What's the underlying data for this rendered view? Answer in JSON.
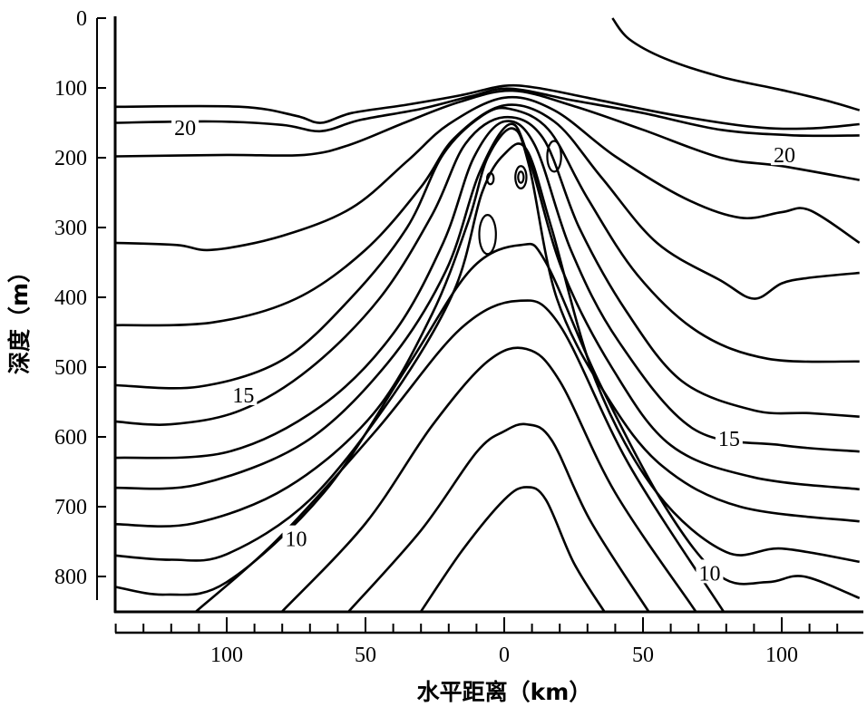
{
  "chart_data": {
    "type": "contour",
    "title": "",
    "xlabel": "水平距离（km）",
    "ylabel": "深度（m）",
    "xlim": [
      -140,
      128
    ],
    "ylim": [
      850,
      0
    ],
    "x_ticks": [
      {
        "value": -100,
        "label": "100"
      },
      {
        "value": -50,
        "label": "50"
      },
      {
        "value": 0,
        "label": "0"
      },
      {
        "value": 50,
        "label": "50"
      },
      {
        "value": 100,
        "label": "100"
      }
    ],
    "x_minor_step": 10,
    "y_ticks": [
      {
        "value": 0,
        "label": "0"
      },
      {
        "value": 100,
        "label": "100"
      },
      {
        "value": 200,
        "label": "200"
      },
      {
        "value": 300,
        "label": "300"
      },
      {
        "value": 400,
        "label": "400"
      },
      {
        "value": 500,
        "label": "500"
      },
      {
        "value": 600,
        "label": "600"
      },
      {
        "value": 700,
        "label": "700"
      },
      {
        "value": 800,
        "label": "800"
      }
    ],
    "contour_labels": [
      {
        "text": "20",
        "x": -115,
        "m": 156
      },
      {
        "text": "20",
        "x": 101,
        "m": 195
      },
      {
        "text": "15",
        "x": -94,
        "m": 539
      },
      {
        "text": "15",
        "x": 81,
        "m": 601
      },
      {
        "text": "10",
        "x": -75,
        "m": 745
      },
      {
        "text": "10",
        "x": 74,
        "m": 794
      }
    ],
    "contours": [
      [
        [
          39,
          0
        ],
        [
          45,
          30
        ],
        [
          58,
          58
        ],
        [
          78,
          84
        ],
        [
          100,
          103
        ],
        [
          116,
          118
        ],
        [
          128,
          132
        ]
      ],
      [
        [
          -140,
          127
        ],
        [
          -95,
          127
        ],
        [
          -75,
          140
        ],
        [
          -66,
          150
        ],
        [
          -55,
          136
        ],
        [
          -35,
          124
        ],
        [
          -15,
          110
        ],
        [
          0,
          97
        ],
        [
          12,
          100
        ],
        [
          30,
          114
        ],
        [
          60,
          138
        ],
        [
          90,
          156
        ],
        [
          110,
          158
        ],
        [
          128,
          152
        ]
      ],
      [
        [
          -140,
          150
        ],
        [
          -105,
          148
        ],
        [
          -80,
          153
        ],
        [
          -66,
          162
        ],
        [
          -52,
          146
        ],
        [
          -30,
          130
        ],
        [
          -12,
          112
        ],
        [
          2,
          101
        ],
        [
          25,
          118
        ],
        [
          50,
          136
        ],
        [
          78,
          160
        ],
        [
          105,
          168
        ],
        [
          128,
          168
        ]
      ],
      [
        [
          -140,
          198
        ],
        [
          -100,
          196
        ],
        [
          -72,
          196
        ],
        [
          -56,
          182
        ],
        [
          -36,
          150
        ],
        [
          -16,
          120
        ],
        [
          3,
          104
        ],
        [
          25,
          126
        ],
        [
          50,
          160
        ],
        [
          78,
          200
        ],
        [
          100,
          212
        ],
        [
          128,
          232
        ]
      ],
      [
        [
          -140,
          322
        ],
        [
          -118,
          325
        ],
        [
          -105,
          332
        ],
        [
          -80,
          312
        ],
        [
          -55,
          272
        ],
        [
          -35,
          205
        ],
        [
          -20,
          152
        ],
        [
          0,
          114
        ],
        [
          18,
          132
        ],
        [
          40,
          198
        ],
        [
          65,
          258
        ],
        [
          85,
          286
        ],
        [
          100,
          278
        ],
        [
          110,
          275
        ],
        [
          128,
          322
        ]
      ],
      [
        [
          -140,
          440
        ],
        [
          -105,
          436
        ],
        [
          -75,
          402
        ],
        [
          -50,
          332
        ],
        [
          -30,
          242
        ],
        [
          -18,
          172
        ],
        [
          0,
          125
        ],
        [
          18,
          148
        ],
        [
          35,
          228
        ],
        [
          55,
          322
        ],
        [
          78,
          376
        ],
        [
          90,
          402
        ],
        [
          100,
          380
        ],
        [
          110,
          372
        ],
        [
          128,
          365
        ]
      ],
      [
        [
          -140,
          526
        ],
        [
          -110,
          528
        ],
        [
          -80,
          490
        ],
        [
          -55,
          400
        ],
        [
          -35,
          300
        ],
        [
          -22,
          195
        ],
        [
          -8,
          140
        ],
        [
          2,
          130
        ],
        [
          16,
          160
        ],
        [
          30,
          258
        ],
        [
          48,
          368
        ],
        [
          70,
          450
        ],
        [
          95,
          488
        ],
        [
          128,
          492
        ]
      ],
      [
        [
          -140,
          578
        ],
        [
          -120,
          582
        ],
        [
          -95,
          562
        ],
        [
          -70,
          502
        ],
        [
          -45,
          402
        ],
        [
          -26,
          282
        ],
        [
          -14,
          180
        ],
        [
          0,
          142
        ],
        [
          14,
          172
        ],
        [
          27,
          300
        ],
        [
          44,
          420
        ],
        [
          64,
          520
        ],
        [
          90,
          562
        ],
        [
          110,
          566
        ],
        [
          128,
          571
        ]
      ],
      [
        [
          -140,
          630
        ],
        [
          -100,
          622
        ],
        [
          -66,
          556
        ],
        [
          -40,
          452
        ],
        [
          -22,
          322
        ],
        [
          -11,
          200
        ],
        [
          0,
          148
        ],
        [
          11,
          182
        ],
        [
          24,
          332
        ],
        [
          41,
          462
        ],
        [
          68,
          588
        ],
        [
          100,
          612
        ],
        [
          128,
          621
        ]
      ],
      [
        [
          -140,
          673
        ],
        [
          -110,
          668
        ],
        [
          -72,
          608
        ],
        [
          -42,
          494
        ],
        [
          -21,
          362
        ],
        [
          -9,
          222
        ],
        [
          2,
          152
        ],
        [
          9,
          202
        ],
        [
          21,
          362
        ],
        [
          39,
          502
        ],
        [
          60,
          612
        ],
        [
          90,
          658
        ],
        [
          128,
          675
        ]
      ],
      [
        [
          -140,
          725
        ],
        [
          -112,
          724
        ],
        [
          -78,
          672
        ],
        [
          -47,
          566
        ],
        [
          -26,
          424
        ],
        [
          -13,
          292
        ],
        [
          -6,
          200
        ],
        [
          3,
          158
        ],
        [
          9,
          212
        ],
        [
          19,
          402
        ],
        [
          37,
          542
        ],
        [
          57,
          642
        ],
        [
          85,
          700
        ],
        [
          128,
          721
        ]
      ],
      [
        [
          -140,
          770
        ],
        [
          -120,
          776
        ],
        [
          -100,
          768
        ],
        [
          -70,
          690
        ],
        [
          -40,
          540
        ],
        [
          -18,
          390
        ],
        [
          -8,
          250
        ],
        [
          0,
          195
        ],
        [
          8,
          188
        ],
        [
          17,
          300
        ],
        [
          33,
          520
        ],
        [
          55,
          680
        ],
        [
          80,
          765
        ],
        [
          100,
          760
        ],
        [
          128,
          779
        ]
      ],
      [
        [
          -140,
          815
        ],
        [
          -122,
          826
        ],
        [
          -100,
          808
        ],
        [
          -65,
          680
        ],
        [
          -35,
          500
        ],
        [
          -12,
          360
        ],
        [
          6,
          325
        ],
        [
          15,
          350
        ],
        [
          34,
          520
        ],
        [
          58,
          700
        ],
        [
          78,
          800
        ],
        [
          95,
          808
        ],
        [
          108,
          800
        ],
        [
          128,
          831
        ]
      ],
      [
        [
          -111,
          850
        ],
        [
          -82,
          748
        ],
        [
          -46,
          590
        ],
        [
          -16,
          446
        ],
        [
          5,
          405
        ],
        [
          20,
          440
        ],
        [
          45,
          640
        ],
        [
          79,
          850
        ]
      ],
      [
        [
          -80,
          850
        ],
        [
          -50,
          724
        ],
        [
          -26,
          584
        ],
        [
          -6,
          492
        ],
        [
          8,
          474
        ],
        [
          20,
          520
        ],
        [
          40,
          680
        ],
        [
          69,
          850
        ]
      ],
      [
        [
          -56,
          850
        ],
        [
          -30,
          734
        ],
        [
          -10,
          622
        ],
        [
          0,
          592
        ],
        [
          8,
          582
        ],
        [
          17,
          604
        ],
        [
          31,
          720
        ],
        [
          52,
          850
        ]
      ],
      [
        [
          -30,
          850
        ],
        [
          -15,
          762
        ],
        [
          0,
          690
        ],
        [
          8,
          672
        ],
        [
          15,
          690
        ],
        [
          25,
          780
        ],
        [
          36,
          850
        ]
      ]
    ],
    "closed_loops": [
      {
        "x": -5,
        "m": 230,
        "rx": 1.2,
        "rm": 8
      },
      {
        "x": 6,
        "m": 228,
        "rx": 2,
        "rm": 16
      },
      {
        "x": 6,
        "m": 228,
        "rx": 1,
        "rm": 8
      },
      {
        "x": 18,
        "m": 198,
        "rx": 2.5,
        "rm": 22
      },
      {
        "x": -6,
        "m": 310,
        "rx": 3,
        "rm": 28
      }
    ]
  }
}
